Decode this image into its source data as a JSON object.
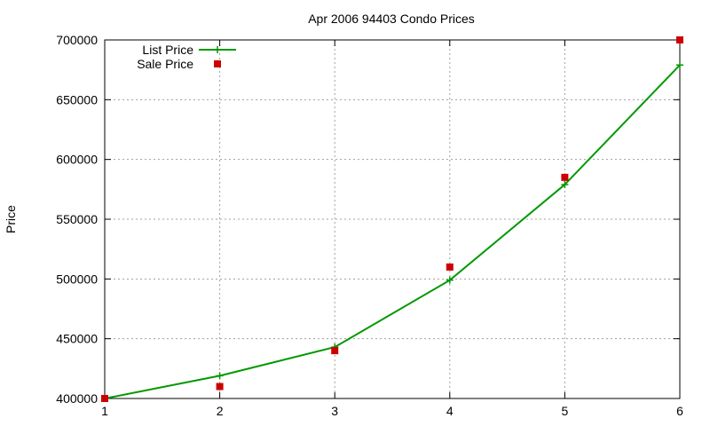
{
  "chart_data": {
    "type": "line",
    "title": "Apr 2006 94403 Condo Prices",
    "xlabel": "",
    "ylabel": "Price",
    "xlim": [
      1,
      6
    ],
    "ylim": [
      400000,
      700000
    ],
    "x_ticks": [
      "1",
      "2",
      "3",
      "4",
      "5",
      "6"
    ],
    "y_ticks": [
      "400000",
      "450000",
      "500000",
      "550000",
      "600000",
      "650000",
      "700000"
    ],
    "grid": true,
    "legend_position": "top-left",
    "series": [
      {
        "name": "List Price",
        "style": "line-with-plus-markers",
        "color": "#009900",
        "x": [
          1,
          2,
          3,
          4,
          5,
          6
        ],
        "y": [
          400000,
          419000,
          443000,
          499000,
          579000,
          679000
        ]
      },
      {
        "name": "Sale Price",
        "style": "square-points",
        "color": "#cc0000",
        "x": [
          1,
          2,
          3,
          4,
          5,
          6
        ],
        "y": [
          400000,
          410000,
          440000,
          510000,
          585000,
          700000
        ]
      }
    ]
  }
}
